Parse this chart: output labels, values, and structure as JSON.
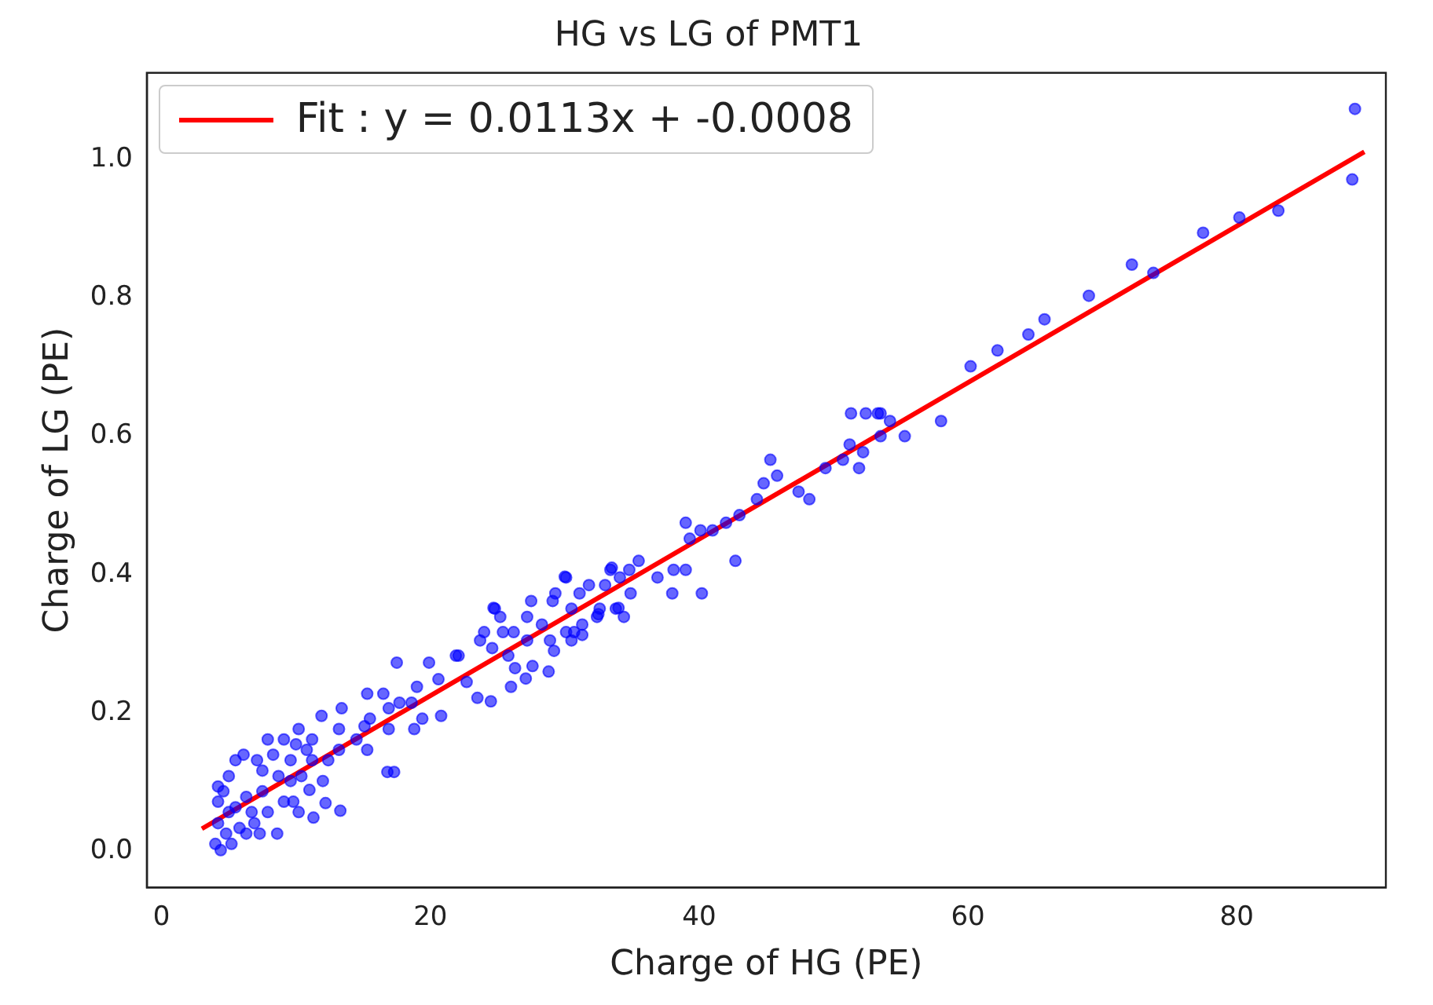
{
  "chart_data": {
    "type": "scatter",
    "title": "HG vs LG of PMT1",
    "xlabel": "Charge of HG (PE)",
    "ylabel": "Charge of LG (PE)",
    "xlim": [
      -1.1,
      91.1
    ],
    "ylim": [
      -0.052,
      1.125
    ],
    "xticks": [
      0,
      20,
      40,
      60,
      80
    ],
    "yticks": [
      {
        "value": 0,
        "label": "0.0"
      },
      {
        "value": 0.2,
        "label": "0.2"
      },
      {
        "value": 0.4,
        "label": "0.4"
      },
      {
        "value": 0.6,
        "label": "0.6"
      },
      {
        "value": 0.8,
        "label": "0.8"
      },
      {
        "value": 1,
        "label": "1.0"
      }
    ],
    "grid": false,
    "legend": "top left",
    "marker": "circle",
    "series": [
      {
        "color": "#0000ff",
        "x": [
          88.8,
          88.6,
          83.1,
          80.2,
          77.5,
          73.8,
          72.2,
          69.0,
          65.7,
          64.5,
          62.2,
          60.2,
          58.0,
          55.3,
          54.2,
          53.5,
          53.5,
          53.3,
          52.4,
          51.3,
          52.2,
          51.9,
          51.2,
          50.7,
          49.4,
          48.2,
          47.4,
          44.3,
          45.8,
          45.3,
          44.8,
          43.0,
          42.0,
          42.7,
          41.0,
          40.1,
          39.3,
          39.0,
          39.0,
          38.1,
          36.9,
          38.0,
          40.2,
          35.5,
          34.8,
          33.4,
          34.1,
          34.9,
          33.0,
          31.8,
          31.1,
          30.1,
          29.3,
          29.1,
          27.5,
          30.5,
          32.6,
          33.8,
          34.4,
          32.4,
          31.3,
          30.7,
          30.1,
          30.5,
          28.9,
          28.3,
          27.2,
          27.2,
          26.2,
          25.4,
          24.8,
          25.2,
          24.0,
          23.7,
          25.8,
          24.6,
          26.3,
          22.1,
          33.5,
          30.0,
          34.0,
          24.7,
          17.5,
          19.9,
          21.9,
          24.5,
          27.1,
          15.3,
          16.5,
          19.0,
          20.8,
          18.8,
          17.7,
          11.9,
          13.4,
          10.2,
          7.9,
          16.8,
          17.3,
          15.3,
          13.2,
          12.4,
          11.2,
          12.2,
          11.3,
          13.3,
          11.0,
          9.8,
          8.6,
          7.3,
          6.3,
          5.2,
          4.4,
          4.0,
          4.2,
          4.2,
          4.2,
          5.0,
          5.5,
          6.1,
          7.1,
          8.3,
          9.1,
          9.6,
          8.7,
          7.5,
          6.3,
          5.5,
          6.7,
          7.9,
          9.1,
          10.4,
          11.2,
          10.0,
          13.2,
          14.5,
          15.1,
          15.5,
          16.9,
          16.9,
          18.6,
          12.0,
          10.2,
          4.8,
          5.8,
          6.9,
          5.0,
          4.6,
          7.5,
          9.6,
          10.8,
          19.4,
          22.7,
          20.6,
          23.5,
          26.0,
          27.6,
          29.2,
          31.3,
          28.8,
          32.5
        ],
        "values": [
          1.073,
          0.971,
          0.926,
          0.916,
          0.894,
          0.836,
          0.848,
          0.803,
          0.769,
          0.747,
          0.724,
          0.701,
          0.622,
          0.6,
          0.622,
          0.633,
          0.6,
          0.633,
          0.633,
          0.633,
          0.577,
          0.554,
          0.588,
          0.566,
          0.554,
          0.509,
          0.52,
          0.509,
          0.543,
          0.566,
          0.532,
          0.486,
          0.475,
          0.42,
          0.464,
          0.464,
          0.452,
          0.475,
          0.407,
          0.407,
          0.396,
          0.373,
          0.373,
          0.42,
          0.407,
          0.407,
          0.396,
          0.373,
          0.385,
          0.385,
          0.373,
          0.396,
          0.373,
          0.362,
          0.362,
          0.351,
          0.351,
          0.351,
          0.339,
          0.339,
          0.328,
          0.317,
          0.317,
          0.305,
          0.305,
          0.328,
          0.339,
          0.305,
          0.317,
          0.317,
          0.351,
          0.339,
          0.317,
          0.305,
          0.283,
          0.294,
          0.265,
          0.283,
          0.41,
          0.397,
          0.352,
          0.352,
          0.273,
          0.273,
          0.283,
          0.217,
          0.25,
          0.228,
          0.228,
          0.238,
          0.196,
          0.177,
          0.215,
          0.196,
          0.207,
          0.177,
          0.162,
          0.115,
          0.115,
          0.147,
          0.147,
          0.132,
          0.132,
          0.07,
          0.049,
          0.059,
          0.089,
          0.072,
          0.026,
          0.026,
          0.026,
          0.011,
          0.002,
          0.011,
          0.041,
          0.072,
          0.094,
          0.109,
          0.132,
          0.14,
          0.132,
          0.14,
          0.162,
          0.132,
          0.109,
          0.087,
          0.079,
          0.064,
          0.057,
          0.057,
          0.072,
          0.109,
          0.162,
          0.155,
          0.177,
          0.162,
          0.181,
          0.192,
          0.177,
          0.207,
          0.215,
          0.102,
          0.057,
          0.026,
          0.034,
          0.041,
          0.057,
          0.087,
          0.117,
          0.102,
          0.147,
          0.192,
          0.245,
          0.249,
          0.222,
          0.238,
          0.268,
          0.29,
          0.313,
          0.26,
          0.343
        ]
      },
      {
        "type": "line",
        "name": "Fit : y = 0.0113x + -0.0008",
        "color": "#ff0000",
        "x": [
          3.0,
          89.5
        ],
        "values": [
          0.033,
          1.011
        ],
        "marker": "none",
        "line_style": "solid"
      }
    ]
  }
}
